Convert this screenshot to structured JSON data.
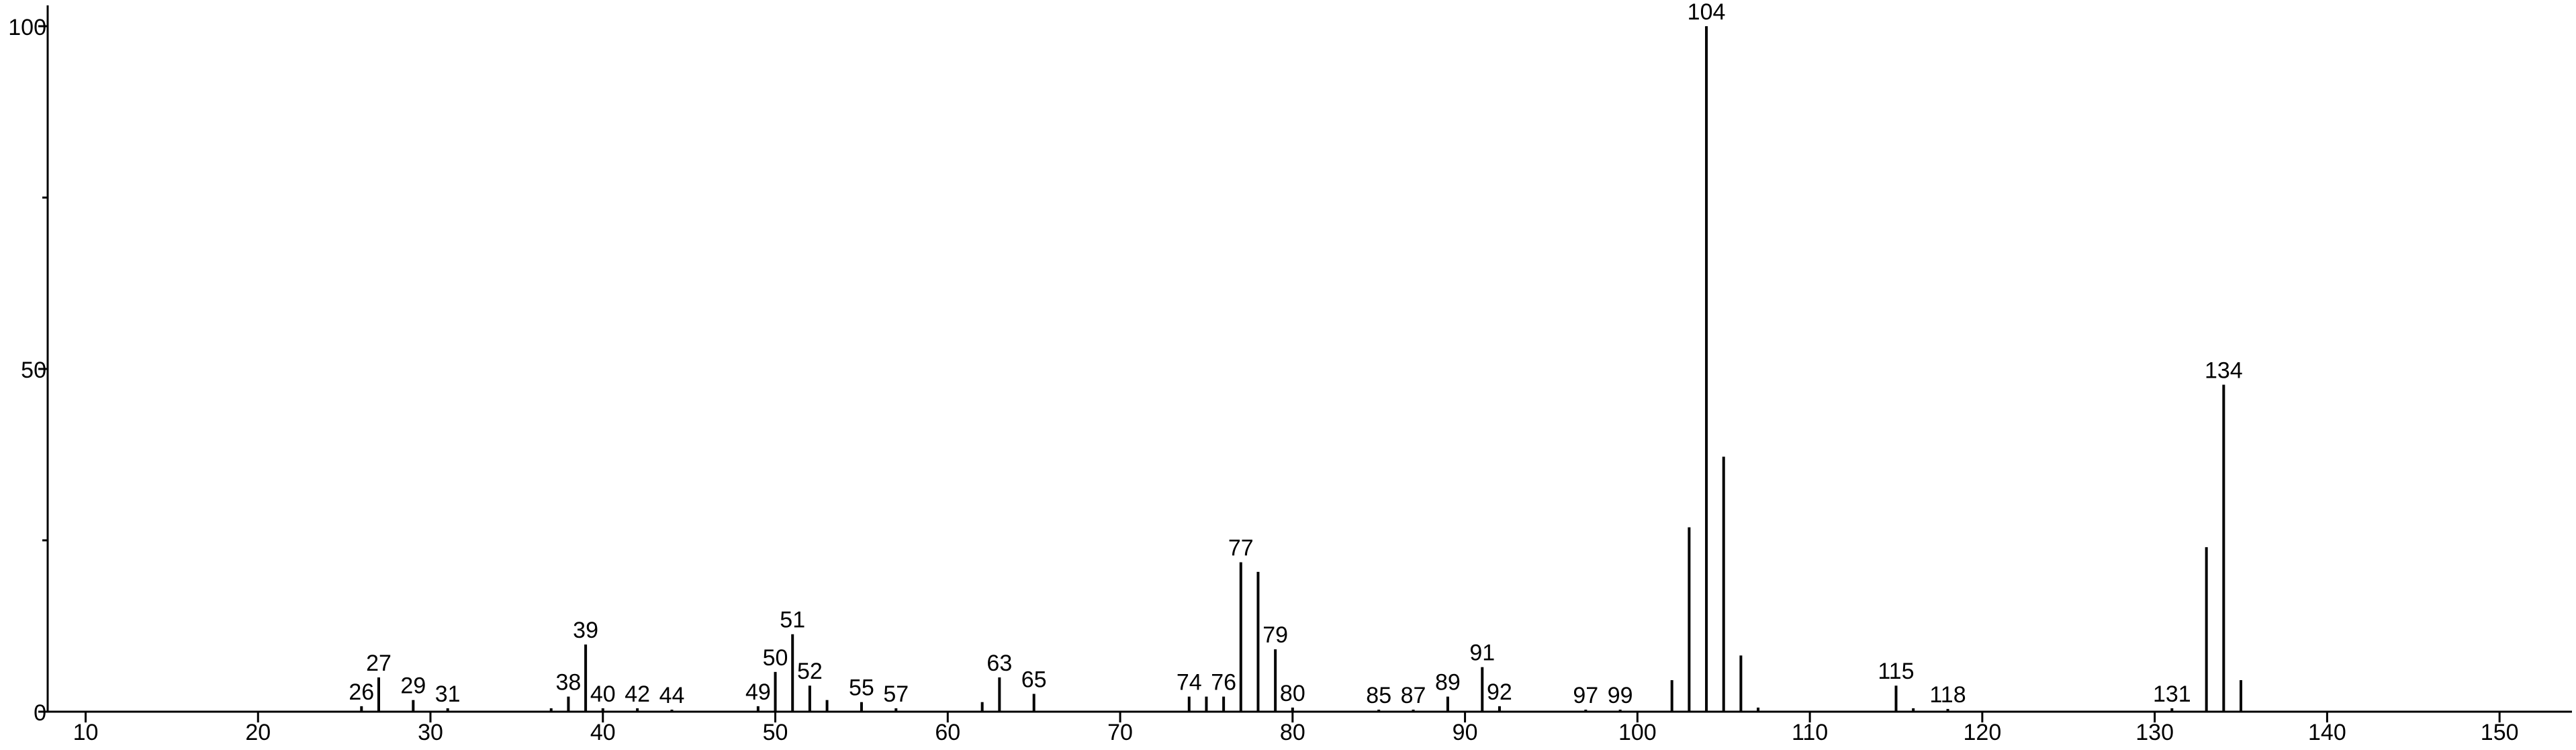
{
  "chart_data": {
    "type": "bar",
    "color": "#000000",
    "x": [
      26,
      27,
      29,
      31,
      37,
      38,
      39,
      40,
      42,
      44,
      49,
      50,
      51,
      52,
      53,
      55,
      57,
      62,
      63,
      65,
      74,
      75,
      76,
      77,
      78,
      79,
      80,
      85,
      87,
      89,
      91,
      92,
      97,
      99,
      102,
      103,
      104,
      105,
      106,
      107,
      115,
      116,
      118,
      131,
      133,
      134,
      135
    ],
    "values": [
      0.8,
      5,
      1.7,
      0.5,
      0.5,
      2.2,
      9.8,
      0.5,
      0.5,
      0.3,
      0.8,
      5.8,
      11.3,
      3.8,
      1.7,
      1.4,
      0.5,
      1.4,
      5,
      2.6,
      2.2,
      2.2,
      2.2,
      21.8,
      20.4,
      9.1,
      0.6,
      0.3,
      0.3,
      2.2,
      6.5,
      0.8,
      0.3,
      0.3,
      4.6,
      26.9,
      100,
      37.2,
      8.2,
      0.6,
      3.8,
      0.5,
      0.4,
      0.5,
      24,
      47.7,
      4.6
    ],
    "peak_labels": [
      26,
      27,
      29,
      31,
      null,
      38,
      39,
      40,
      42,
      44,
      49,
      50,
      51,
      52,
      null,
      55,
      57,
      null,
      63,
      65,
      74,
      null,
      76,
      77,
      null,
      79,
      80,
      85,
      87,
      89,
      91,
      92,
      97,
      99,
      null,
      null,
      104,
      null,
      null,
      null,
      115,
      null,
      118,
      131,
      null,
      134,
      null
    ],
    "xlim": [
      7.8,
      154.2
    ],
    "ylim": [
      0,
      102
    ],
    "xticks": [
      10,
      20,
      30,
      40,
      50,
      60,
      70,
      80,
      90,
      100,
      110,
      120,
      130,
      140,
      150
    ],
    "yticks": [
      0,
      50,
      100
    ],
    "yminor_ticks": [
      25,
      75
    ]
  }
}
